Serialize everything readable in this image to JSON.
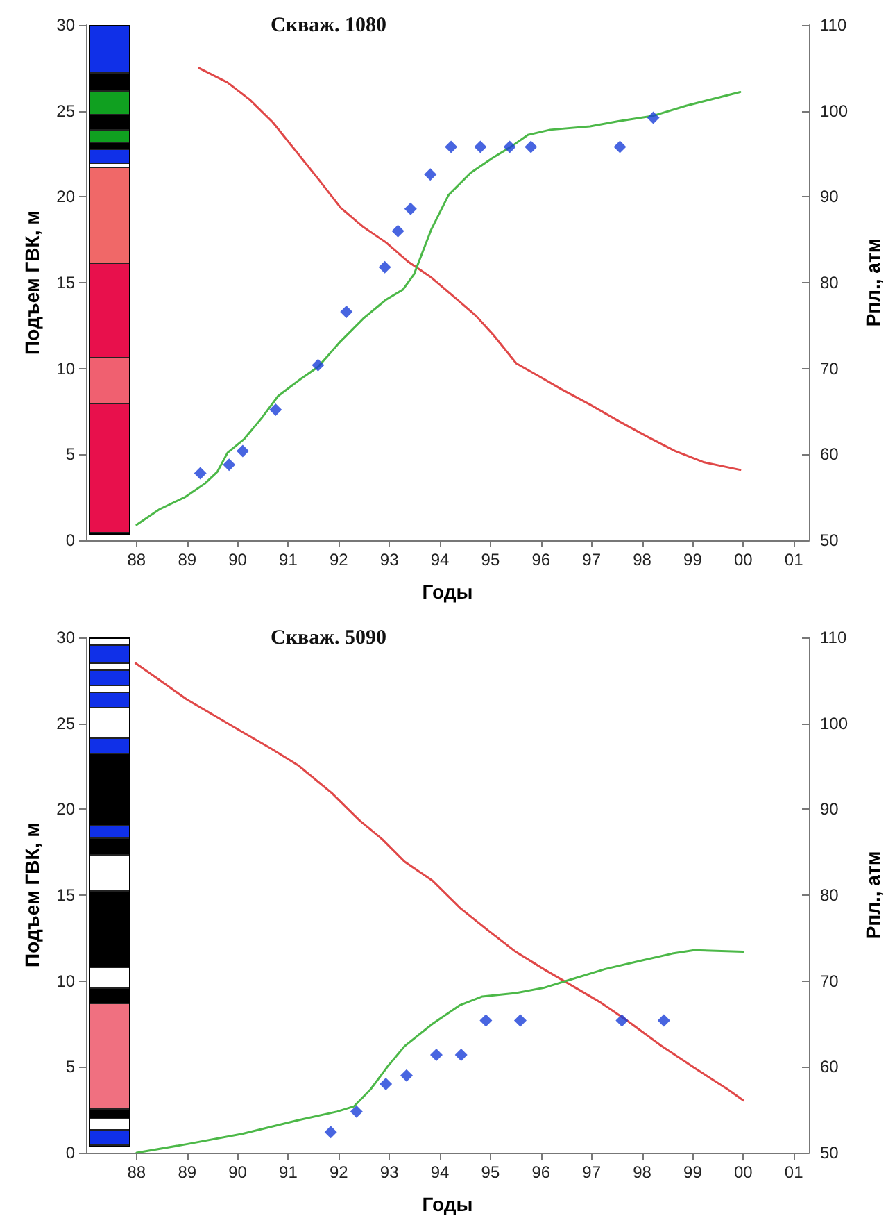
{
  "chart_data": [
    {
      "type": "line",
      "title": "Скваж. 1080",
      "xlabel": "Годы",
      "ylabel": "Подъем ГВК, м",
      "y2label": "Рпл., атм",
      "xlim": [
        1987,
        2001.3
      ],
      "xticks": [
        {
          "value": 1988,
          "label": "88"
        },
        {
          "value": 1989,
          "label": "89"
        },
        {
          "value": 1990,
          "label": "90"
        },
        {
          "value": 1991,
          "label": "91"
        },
        {
          "value": 1992,
          "label": "92"
        },
        {
          "value": 1993,
          "label": "93"
        },
        {
          "value": 1994,
          "label": "94"
        },
        {
          "value": 1995,
          "label": "95"
        },
        {
          "value": 1996,
          "label": "96"
        },
        {
          "value": 1997,
          "label": "97"
        },
        {
          "value": 1998,
          "label": "98"
        },
        {
          "value": 1999,
          "label": "99"
        },
        {
          "value": 2000,
          "label": "00"
        },
        {
          "value": 2001,
          "label": "01"
        }
      ],
      "ylim": [
        0,
        30
      ],
      "yticks": [
        0,
        5,
        10,
        15,
        20,
        25,
        30
      ],
      "y2lim": [
        50,
        110
      ],
      "y2ticks": [
        50,
        60,
        70,
        80,
        90,
        100,
        110
      ],
      "grid": false,
      "series": [
        {
          "type": "line",
          "axis": "y2",
          "color": "#e04848",
          "marker": "none",
          "line_style": "solid",
          "x": [
            1989.23,
            1989.8,
            1990.24,
            1990.69,
            1991.14,
            1991.59,
            1992.04,
            1992.48,
            1992.93,
            1993.38,
            1993.83,
            1994.27,
            1994.72,
            1995.06,
            1995.51,
            1995.96,
            1996.4,
            1996.97,
            1997.53,
            1998.09,
            1998.65,
            1999.21,
            1999.94
          ],
          "values": [
            105,
            103.3,
            101.3,
            98.7,
            95.4,
            92.1,
            88.7,
            86.5,
            84.7,
            82.4,
            80.6,
            78.4,
            76.1,
            73.9,
            70.6,
            69.1,
            67.6,
            65.8,
            63.9,
            62.1,
            60.4,
            59.1,
            58.2
          ]
        },
        {
          "type": "line",
          "color": "#4cb848",
          "marker": "none",
          "line_style": "solid",
          "x": [
            1988.0,
            1988.45,
            1988.95,
            1989.35,
            1989.6,
            1989.8,
            1990.13,
            1990.47,
            1990.8,
            1991.25,
            1991.59,
            1992.04,
            1992.48,
            1992.93,
            1993.27,
            1993.49,
            1993.83,
            1994.17,
            1994.61,
            1995.06,
            1995.4,
            1995.74,
            1996.18,
            1996.97,
            1997.53,
            1998.2,
            1998.87,
            1999.94
          ],
          "values": [
            0.9,
            1.8,
            2.5,
            3.3,
            4.0,
            5.1,
            5.9,
            7.1,
            8.4,
            9.4,
            10.1,
            11.6,
            12.9,
            14.0,
            14.6,
            15.5,
            18.1,
            20.1,
            21.4,
            22.3,
            22.9,
            23.6,
            23.9,
            24.1,
            24.4,
            24.7,
            25.3,
            26.1
          ]
        },
        {
          "type": "scatter",
          "color": "#1a3fd8",
          "marker": "diamond",
          "x": [
            1989.26,
            1989.83,
            1990.1,
            1990.75,
            1991.59,
            1992.15,
            1992.91,
            1993.17,
            1993.42,
            1993.81,
            1994.22,
            1994.8,
            1995.38,
            1995.8,
            1997.56,
            1998.22
          ],
          "values": [
            3.9,
            4.4,
            5.2,
            7.6,
            10.2,
            13.3,
            15.9,
            18.0,
            19.3,
            21.3,
            22.9,
            22.9,
            22.9,
            22.9,
            22.9,
            24.6
          ]
        }
      ]
    },
    {
      "type": "line",
      "title": "Скваж. 5090",
      "xlabel": "Годы",
      "ylabel": "Подъем ГВК, м",
      "y2label": "Рпл., атм",
      "xlim": [
        1987,
        2001.3
      ],
      "xticks": [
        {
          "value": 1988,
          "label": "88"
        },
        {
          "value": 1989,
          "label": "89"
        },
        {
          "value": 1990,
          "label": "90"
        },
        {
          "value": 1991,
          "label": "91"
        },
        {
          "value": 1992,
          "label": "92"
        },
        {
          "value": 1993,
          "label": "93"
        },
        {
          "value": 1994,
          "label": "94"
        },
        {
          "value": 1995,
          "label": "95"
        },
        {
          "value": 1996,
          "label": "96"
        },
        {
          "value": 1997,
          "label": "97"
        },
        {
          "value": 1998,
          "label": "98"
        },
        {
          "value": 1999,
          "label": "99"
        },
        {
          "value": 2000,
          "label": "00"
        },
        {
          "value": 2001,
          "label": "01"
        }
      ],
      "ylim": [
        0,
        30
      ],
      "yticks": [
        0,
        5,
        10,
        15,
        20,
        25,
        30
      ],
      "y2lim": [
        50,
        110
      ],
      "y2ticks": [
        50,
        60,
        70,
        80,
        90,
        100,
        110
      ],
      "grid": false,
      "series": [
        {
          "type": "line",
          "axis": "y2",
          "color": "#e04848",
          "marker": "none",
          "line_style": "solid",
          "x": [
            1987.98,
            1988.44,
            1988.99,
            1989.54,
            1990.09,
            1990.65,
            1991.2,
            1991.86,
            1992.41,
            1992.86,
            1993.3,
            1993.85,
            1994.4,
            1994.95,
            1995.5,
            1996.05,
            1996.6,
            1997.15,
            1997.7,
            1998.37,
            1999.03,
            1999.69,
            2000.0
          ],
          "values": [
            107.0,
            105.1,
            102.8,
            100.9,
            99.0,
            97.1,
            95.1,
            91.9,
            88.7,
            86.5,
            83.9,
            81.7,
            78.5,
            75.9,
            73.4,
            71.4,
            69.5,
            67.6,
            65.4,
            62.5,
            59.9,
            57.4,
            56.1
          ]
        },
        {
          "type": "line",
          "color": "#4cb848",
          "marker": "none",
          "line_style": "solid",
          "x": [
            1988.0,
            1988.99,
            1990.09,
            1991.2,
            1991.97,
            1992.3,
            1992.63,
            1992.96,
            1993.3,
            1993.85,
            1994.4,
            1994.84,
            1995.5,
            1996.05,
            1996.6,
            1997.27,
            1998.0,
            1998.6,
            1999.03,
            2000.0
          ],
          "values": [
            0,
            0.5,
            1.1,
            1.9,
            2.4,
            2.7,
            3.7,
            5.0,
            6.2,
            7.5,
            8.6,
            9.1,
            9.3,
            9.6,
            10.1,
            10.7,
            11.2,
            11.6,
            11.8,
            11.7
          ]
        },
        {
          "type": "scatter",
          "color": "#1a3fd8",
          "marker": "diamond",
          "x": [
            1991.84,
            1992.35,
            1992.93,
            1993.34,
            1993.93,
            1994.42,
            1994.91,
            1995.59,
            1997.6,
            1998.43
          ],
          "values": [
            1.2,
            2.4,
            4.0,
            4.5,
            5.7,
            5.7,
            7.7,
            7.7,
            7.7,
            7.7
          ]
        }
      ]
    }
  ]
}
